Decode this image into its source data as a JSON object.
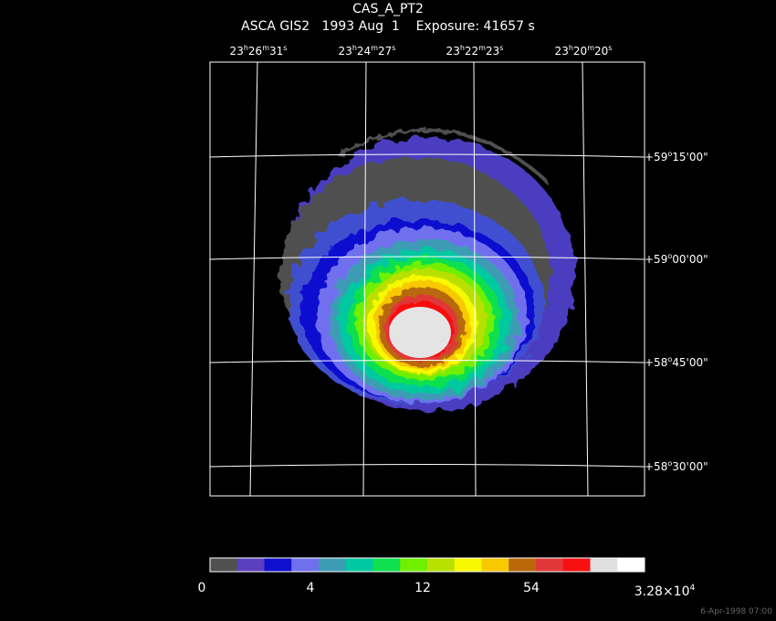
{
  "header": {
    "target": "CAS_A_PT2",
    "line2": "ASCA GIS2   1993 Aug  1    Exposure: 41657 s"
  },
  "ra_labels": [
    {
      "h": "23",
      "m": "26",
      "s": "31"
    },
    {
      "h": "23",
      "m": "24",
      "s": "27"
    },
    {
      "h": "23",
      "m": "22",
      "s": "23"
    },
    {
      "h": "23",
      "m": "20",
      "s": "20"
    }
  ],
  "dec_labels": [
    {
      "d": "+59",
      "m": "15",
      "s": "00"
    },
    {
      "d": "+59",
      "m": "00",
      "s": "00"
    },
    {
      "d": "+58",
      "m": "45",
      "s": "00"
    },
    {
      "d": "+58",
      "m": "30",
      "s": "00"
    }
  ],
  "colorbar": {
    "colors": [
      "#505050",
      "#5a3fbf",
      "#1010d0",
      "#7070ee",
      "#3c9cb4",
      "#00c8a0",
      "#10e050",
      "#70f000",
      "#b8e000",
      "#f8f800",
      "#f8c800",
      "#b86808",
      "#e03838",
      "#f81010",
      "#e0e0e0",
      "#ffffff"
    ],
    "labels": [
      "0",
      "4",
      "12",
      "54"
    ],
    "max_label_mant": "3.28×10",
    "max_label_exp": "4"
  },
  "footer": {
    "timestamp": "6-Apr-1998 07:00"
  }
}
